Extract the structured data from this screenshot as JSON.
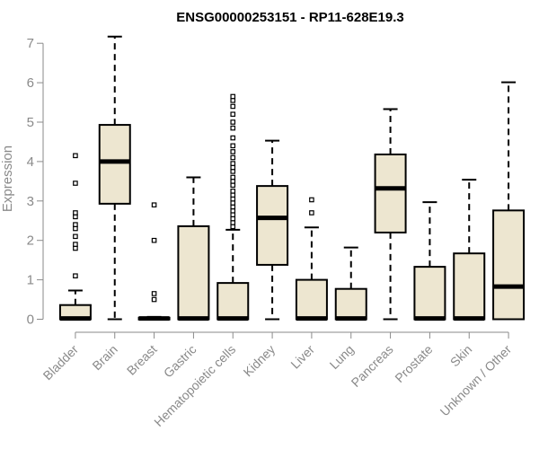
{
  "chart_data": {
    "type": "box",
    "title": "ENSG00000253151 - RP11-628E19.3",
    "ylabel": "Expression",
    "xlabel": "",
    "ylim": [
      0,
      7.2
    ],
    "yticks": [
      0,
      1,
      2,
      3,
      4,
      5,
      6,
      7
    ],
    "box_color": "#ede6d0",
    "categories": [
      "Bladder",
      "Brain",
      "Breast",
      "Gastric",
      "Hematopoietic cells",
      "Kidney",
      "Liver",
      "Lung",
      "Pancreas",
      "Prostate",
      "Skin",
      "Unknown / Other"
    ],
    "boxes": [
      {
        "name": "Bladder",
        "min": 0,
        "q1": 0,
        "median": 0.02,
        "q3": 0.36,
        "max": 0.73,
        "outliers": [
          1.1,
          1.8,
          1.9,
          2.1,
          2.3,
          2.4,
          2.6,
          2.7,
          3.45,
          4.15
        ]
      },
      {
        "name": "Brain",
        "min": 0,
        "q1": 2.93,
        "median": 4.0,
        "q3": 4.93,
        "max": 7.17,
        "outliers": []
      },
      {
        "name": "Breast",
        "min": 0,
        "q1": 0,
        "median": 0.02,
        "q3": 0.04,
        "max": 0.06,
        "outliers": [
          0.5,
          0.65,
          2.0,
          2.9
        ]
      },
      {
        "name": "Gastric",
        "min": 0,
        "q1": 0,
        "median": 0.02,
        "q3": 2.36,
        "max": 3.6,
        "outliers": []
      },
      {
        "name": "Hematopoietic cells",
        "min": 0,
        "q1": 0,
        "median": 0.02,
        "q3": 0.92,
        "max": 2.27,
        "outliers": [
          2.35,
          2.45,
          2.55,
          2.65,
          2.75,
          2.85,
          2.95,
          3.05,
          3.15,
          3.25,
          3.4,
          3.5,
          3.6,
          3.75,
          3.85,
          3.95,
          4.1,
          4.25,
          4.4,
          4.6,
          4.85,
          5.0,
          5.2,
          5.4,
          5.55,
          5.65
        ]
      },
      {
        "name": "Kidney",
        "min": 0,
        "q1": 1.38,
        "median": 2.57,
        "q3": 3.38,
        "max": 4.53,
        "outliers": []
      },
      {
        "name": "Liver",
        "min": 0,
        "q1": 0,
        "median": 0.02,
        "q3": 1.0,
        "max": 2.33,
        "outliers": [
          2.7,
          3.03
        ]
      },
      {
        "name": "Lung",
        "min": 0,
        "q1": 0,
        "median": 0.02,
        "q3": 0.77,
        "max": 1.82,
        "outliers": []
      },
      {
        "name": "Pancreas",
        "min": 0,
        "q1": 2.2,
        "median": 3.32,
        "q3": 4.18,
        "max": 5.33,
        "outliers": []
      },
      {
        "name": "Prostate",
        "min": 0,
        "q1": 0,
        "median": 0.02,
        "q3": 1.33,
        "max": 2.97,
        "outliers": []
      },
      {
        "name": "Skin",
        "min": 0,
        "q1": 0,
        "median": 0.02,
        "q3": 1.67,
        "max": 3.54,
        "outliers": []
      },
      {
        "name": "Unknown / Other",
        "min": 0,
        "q1": 0,
        "median": 0.83,
        "q3": 2.76,
        "max": 6.01,
        "outliers": []
      }
    ]
  }
}
